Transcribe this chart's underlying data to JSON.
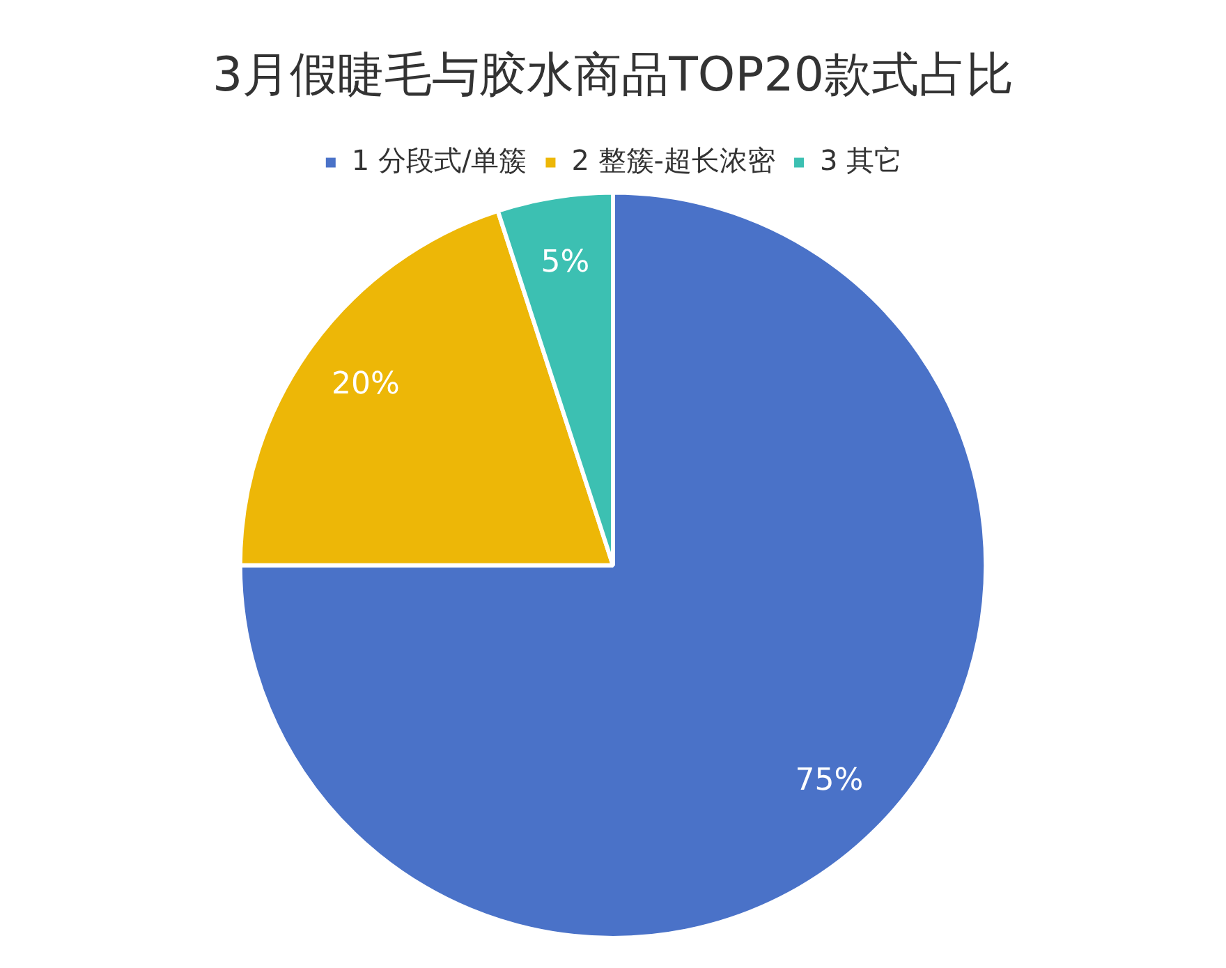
{
  "chart_data": {
    "type": "pie",
    "title": "3月假睫毛与胶水商品TOP20款式占比",
    "categories": [
      "1 分段式/单簇",
      "2 整簇-超长浓密",
      "3 其它"
    ],
    "values": [
      75,
      20,
      5
    ],
    "value_labels": [
      "75%",
      "20%",
      "5%"
    ],
    "colors": [
      "#4a72c8",
      "#edb707",
      "#3cc0b2"
    ],
    "legend": "top"
  }
}
